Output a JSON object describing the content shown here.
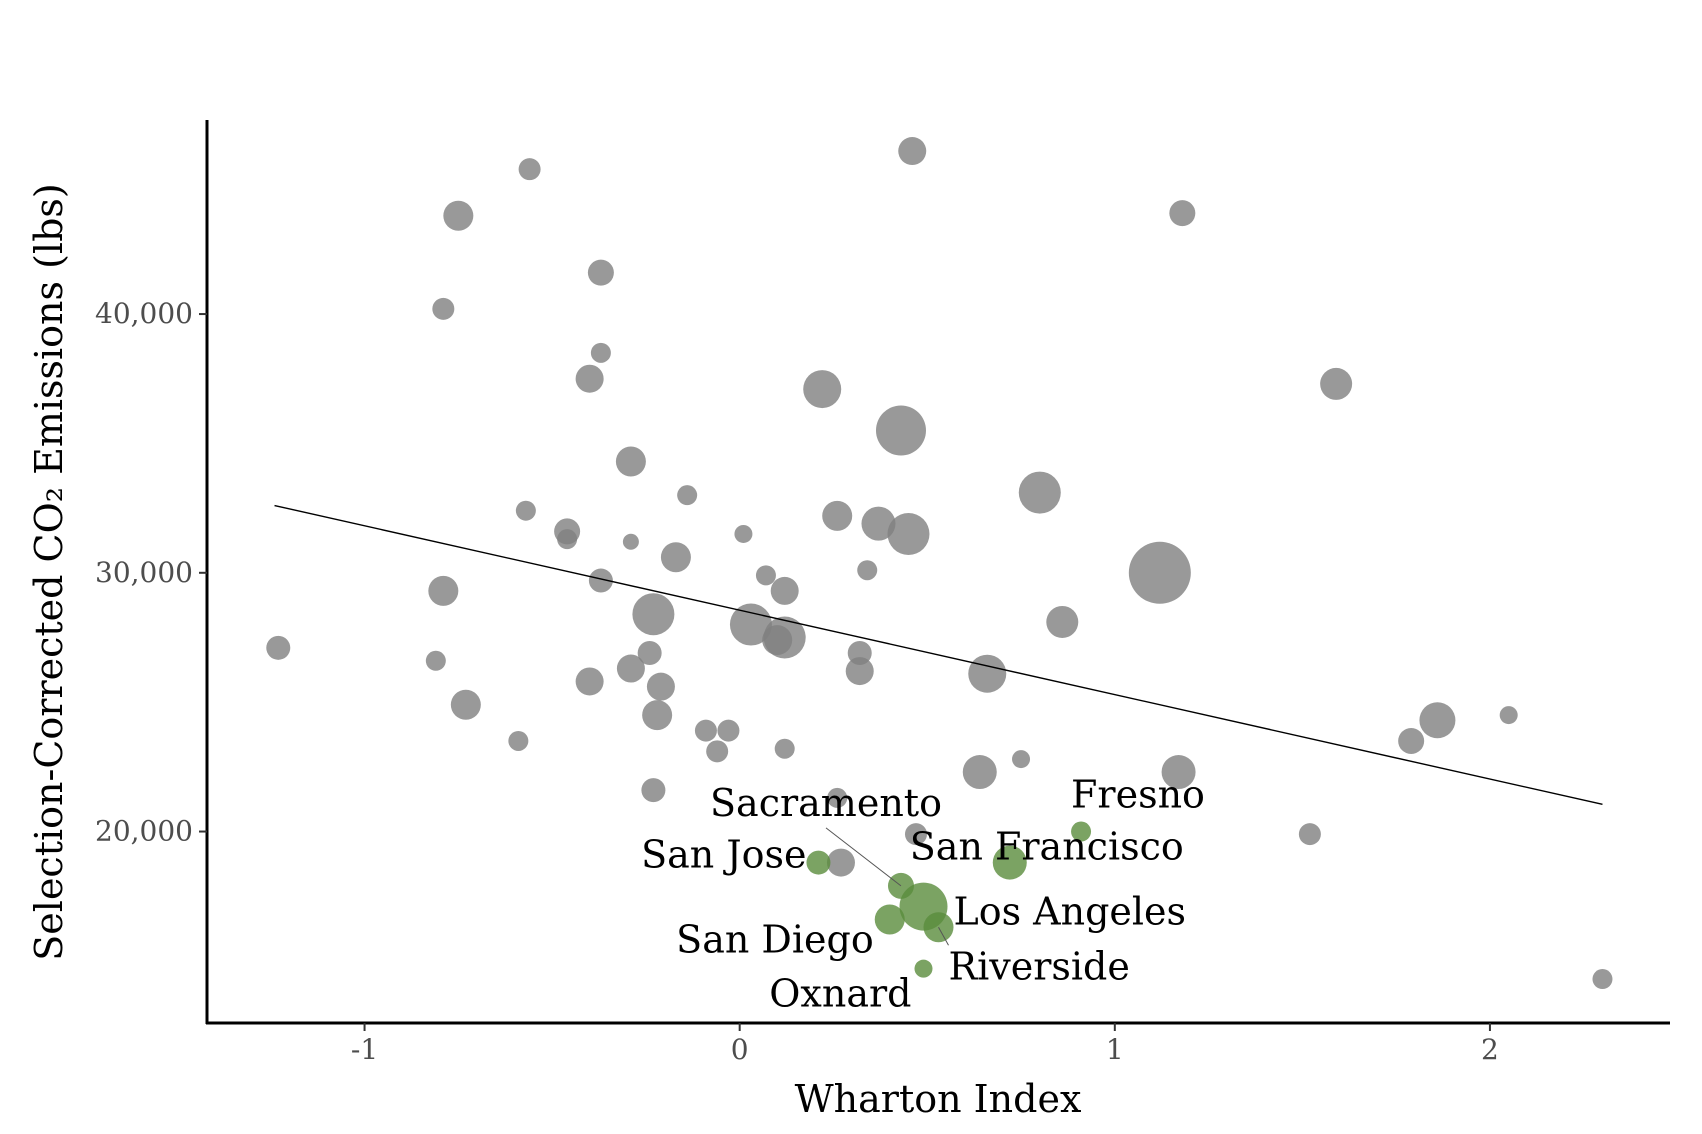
{
  "chart_data": {
    "type": "scatter",
    "xlabel": "Wharton Index",
    "ylabel": "Selection-Corrected CO₂ Emissions (lbs)",
    "xlim": [
      -1.42,
      2.48
    ],
    "ylim": [
      12600,
      47500
    ],
    "x_ticks": [
      -1,
      0,
      1,
      2
    ],
    "x_tick_labels": [
      "-1",
      "0",
      "1",
      "2"
    ],
    "y_ticks": [
      20000,
      30000,
      40000
    ],
    "y_tick_labels": [
      "20,000",
      "30,000",
      "40,000"
    ],
    "grid": false,
    "legend": "none",
    "colors": {
      "other": "#808080",
      "california": "#5a8c3c",
      "fit_line": "#000000"
    },
    "fit_line": {
      "x": [
        -1.24,
        2.3
      ],
      "y": [
        32600,
        21050
      ]
    },
    "series": [
      {
        "points": [
          {
            "x": 0.46,
            "y": 46300,
            "s": 14
          },
          {
            "x": -0.56,
            "y": 45600,
            "s": 11
          },
          {
            "x": -0.75,
            "y": 43800,
            "s": 15
          },
          {
            "x": 1.18,
            "y": 43900,
            "s": 13
          },
          {
            "x": -0.37,
            "y": 41600,
            "s": 13
          },
          {
            "x": -0.79,
            "y": 40200,
            "s": 11
          },
          {
            "x": -0.37,
            "y": 38500,
            "s": 10
          },
          {
            "x": -0.4,
            "y": 37500,
            "s": 14
          },
          {
            "x": 0.22,
            "y": 37100,
            "s": 19
          },
          {
            "x": 1.59,
            "y": 37300,
            "s": 16
          },
          {
            "x": 0.43,
            "y": 35500,
            "s": 25
          },
          {
            "x": -0.29,
            "y": 34300,
            "s": 15
          },
          {
            "x": 0.8,
            "y": 33100,
            "s": 21
          },
          {
            "x": -0.14,
            "y": 33000,
            "s": 10
          },
          {
            "x": -0.57,
            "y": 32400,
            "s": 10
          },
          {
            "x": 0.26,
            "y": 32200,
            "s": 15
          },
          {
            "x": 0.37,
            "y": 31900,
            "s": 17
          },
          {
            "x": -0.46,
            "y": 31600,
            "s": 13
          },
          {
            "x": 0.45,
            "y": 31500,
            "s": 21
          },
          {
            "x": -0.46,
            "y": 31300,
            "s": 10
          },
          {
            "x": 0.01,
            "y": 31500,
            "s": 9
          },
          {
            "x": -0.29,
            "y": 31200,
            "s": 8
          },
          {
            "x": -0.17,
            "y": 30600,
            "s": 15
          },
          {
            "x": 1.12,
            "y": 30000,
            "s": 31
          },
          {
            "x": 0.34,
            "y": 30100,
            "s": 10
          },
          {
            "x": 0.07,
            "y": 29900,
            "s": 10
          },
          {
            "x": -0.37,
            "y": 29700,
            "s": 12
          },
          {
            "x": 0.12,
            "y": 29300,
            "s": 14
          },
          {
            "x": -0.79,
            "y": 29300,
            "s": 15
          },
          {
            "x": -0.23,
            "y": 28400,
            "s": 21
          },
          {
            "x": 0.86,
            "y": 28100,
            "s": 16
          },
          {
            "x": 0.03,
            "y": 28000,
            "s": 21
          },
          {
            "x": 0.12,
            "y": 27500,
            "s": 21
          },
          {
            "x": 0.1,
            "y": 27400,
            "s": 15
          },
          {
            "x": -1.23,
            "y": 27100,
            "s": 12
          },
          {
            "x": -0.24,
            "y": 26900,
            "s": 12
          },
          {
            "x": 0.32,
            "y": 26900,
            "s": 12
          },
          {
            "x": -0.81,
            "y": 26600,
            "s": 10
          },
          {
            "x": -0.29,
            "y": 26300,
            "s": 14
          },
          {
            "x": 0.32,
            "y": 26200,
            "s": 14
          },
          {
            "x": 0.66,
            "y": 26100,
            "s": 19
          },
          {
            "x": -0.4,
            "y": 25800,
            "s": 14
          },
          {
            "x": -0.21,
            "y": 25600,
            "s": 14
          },
          {
            "x": -0.73,
            "y": 24900,
            "s": 15
          },
          {
            "x": -0.22,
            "y": 24500,
            "s": 15
          },
          {
            "x": 2.05,
            "y": 24500,
            "s": 9
          },
          {
            "x": 1.86,
            "y": 24300,
            "s": 18
          },
          {
            "x": -0.09,
            "y": 23900,
            "s": 11
          },
          {
            "x": -0.03,
            "y": 23900,
            "s": 11
          },
          {
            "x": -0.59,
            "y": 23500,
            "s": 10
          },
          {
            "x": 1.79,
            "y": 23500,
            "s": 13
          },
          {
            "x": 0.12,
            "y": 23200,
            "s": 10
          },
          {
            "x": -0.06,
            "y": 23100,
            "s": 11
          },
          {
            "x": 0.75,
            "y": 22800,
            "s": 9
          },
          {
            "x": 0.64,
            "y": 22300,
            "s": 17
          },
          {
            "x": 1.17,
            "y": 22300,
            "s": 17
          },
          {
            "x": -0.23,
            "y": 21600,
            "s": 12
          },
          {
            "x": 0.26,
            "y": 21300,
            "s": 10
          },
          {
            "x": 0.47,
            "y": 19900,
            "s": 11
          },
          {
            "x": 1.52,
            "y": 19900,
            "s": 11
          },
          {
            "x": 0.27,
            "y": 18800,
            "s": 14
          },
          {
            "x": 2.3,
            "y": 14300,
            "s": 10
          }
        ]
      },
      {
        "points": [
          {
            "x": 0.91,
            "y": 20000,
            "label": "Fresno",
            "s": 10
          },
          {
            "x": 0.21,
            "y": 18800,
            "label": "San Jose",
            "s": 12
          },
          {
            "x": 0.72,
            "y": 18800,
            "label": "San Francisco",
            "s": 17
          },
          {
            "x": 0.43,
            "y": 17900,
            "label": "Sacramento",
            "s": 13
          },
          {
            "x": 0.49,
            "y": 17100,
            "label": "Los Angeles",
            "s": 24
          },
          {
            "x": 0.4,
            "y": 16600,
            "label": "San Diego",
            "s": 15
          },
          {
            "x": 0.53,
            "y": 16300,
            "label": "Riverside",
            "s": 15
          },
          {
            "x": 0.49,
            "y": 14700,
            "label": "Oxnard",
            "s": 9
          }
        ]
      }
    ],
    "annotations": [
      {
        "text": "Fresno"
      },
      {
        "text": "San Jose"
      },
      {
        "text": "San Francisco"
      },
      {
        "text": "Sacramento"
      },
      {
        "text": "Los Angeles"
      },
      {
        "text": "San Diego"
      },
      {
        "text": "Riverside"
      },
      {
        "text": "Oxnard"
      }
    ]
  }
}
